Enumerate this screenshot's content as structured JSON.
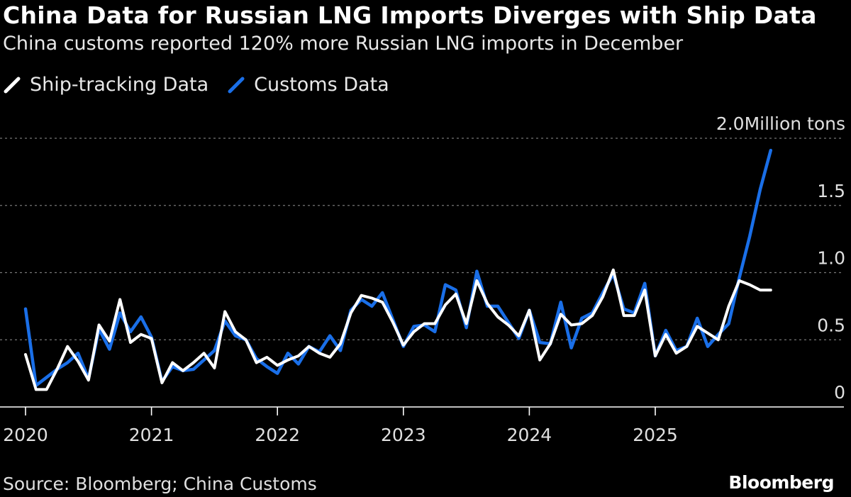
{
  "title": "China Data for Russian LNG Imports Diverges with Ship Data",
  "subtitle": "China customs reported 120% more Russian LNG imports in December",
  "source": "Source: Bloomberg; China Customs",
  "brand": "Bloomberg",
  "colors": {
    "background": "#000000",
    "ship": "#ffffff",
    "customs": "#1a6fe8",
    "grid": "#777777"
  },
  "chart_data": {
    "type": "line",
    "title": "China Data for Russian LNG Imports Diverges with Ship Data",
    "subtitle": "China customs reported 120% more Russian LNG imports in December",
    "xlabel": "",
    "ylabel": "Million tons",
    "ylim": [
      0,
      2.0
    ],
    "yticks": [
      {
        "value": 2.0,
        "label": "2.0Million tons"
      },
      {
        "value": 1.5,
        "label": "1.5"
      },
      {
        "value": 1.0,
        "label": "1.0"
      },
      {
        "value": 0.5,
        "label": "0.5"
      },
      {
        "value": 0,
        "label": "0"
      }
    ],
    "xticks": [
      "2020",
      "2021",
      "2022",
      "2023",
      "2024",
      "2025"
    ],
    "x_start": "2020-01",
    "legend": "top-left",
    "grid": "horizontal dotted",
    "series": [
      {
        "name": "Ship-tracking Data",
        "color": "#ffffff",
        "values": [
          0.39,
          0.13,
          0.13,
          0.28,
          0.45,
          0.34,
          0.2,
          0.61,
          0.49,
          0.8,
          0.48,
          0.54,
          0.51,
          0.18,
          0.33,
          0.27,
          0.33,
          0.4,
          0.29,
          0.71,
          0.56,
          0.5,
          0.33,
          0.37,
          0.31,
          0.35,
          0.38,
          0.45,
          0.4,
          0.37,
          0.47,
          0.7,
          0.83,
          0.81,
          0.78,
          0.63,
          0.46,
          0.56,
          0.62,
          0.62,
          0.76,
          0.84,
          0.62,
          0.94,
          0.77,
          0.67,
          0.61,
          0.53,
          0.72,
          0.35,
          0.47,
          0.69,
          0.61,
          0.62,
          0.68,
          0.82,
          1.02,
          0.68,
          0.68,
          0.87,
          0.38,
          0.54,
          0.4,
          0.45,
          0.6,
          0.55,
          0.5,
          0.75,
          0.94,
          0.91,
          0.87,
          0.87
        ]
      },
      {
        "name": "Customs Data",
        "color": "#1a6fe8",
        "values": [
          0.73,
          0.16,
          0.22,
          0.28,
          0.33,
          0.4,
          0.21,
          0.58,
          0.43,
          0.7,
          0.56,
          0.67,
          0.52,
          0.19,
          0.3,
          0.27,
          0.28,
          0.35,
          0.42,
          0.64,
          0.53,
          0.5,
          0.36,
          0.3,
          0.25,
          0.4,
          0.32,
          0.45,
          0.41,
          0.53,
          0.42,
          0.72,
          0.8,
          0.75,
          0.85,
          0.65,
          0.45,
          0.6,
          0.61,
          0.56,
          0.91,
          0.87,
          0.59,
          1.01,
          0.75,
          0.75,
          0.63,
          0.51,
          0.72,
          0.48,
          0.47,
          0.78,
          0.44,
          0.66,
          0.7,
          0.85,
          0.99,
          0.73,
          0.7,
          0.92,
          0.38,
          0.57,
          0.42,
          0.45,
          0.66,
          0.45,
          0.54,
          0.62,
          0.96,
          1.27,
          1.62,
          1.91
        ]
      }
    ]
  }
}
